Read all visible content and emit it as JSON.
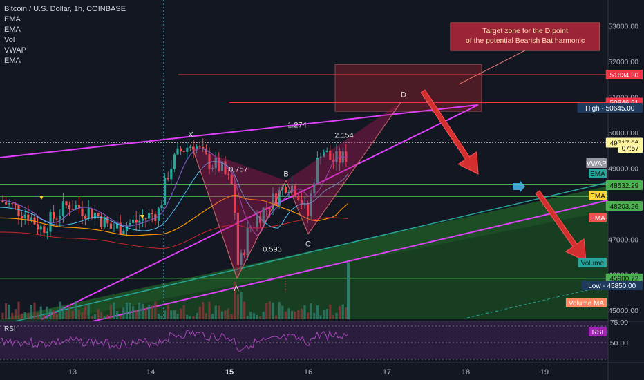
{
  "header": {
    "title": "Bitcoin / U.S. Dollar, 1h, COINBASE",
    "indicators": [
      "EMA",
      "EMA",
      "Vol",
      "VWAP",
      "EMA"
    ]
  },
  "annotation": {
    "line1": "Target zone for the D point",
    "line2": "of the potential Bearish Bat harmonic"
  },
  "pattern": {
    "points": [
      "X",
      "A",
      "B",
      "C",
      "D"
    ],
    "ratios": [
      "0.757",
      "0.593",
      "1.274",
      "2.154"
    ]
  },
  "price_tags": [
    {
      "label": "",
      "value": "51634.30",
      "color": "#f23645"
    },
    {
      "label": "",
      "value": "50846.91",
      "color": "#f23645"
    },
    {
      "label": "High",
      "value": "50645.00",
      "color": "#1e3a5f"
    },
    {
      "label": "",
      "value": "49717.96",
      "color": "#fff59d"
    },
    {
      "label": "",
      "value": "07:57",
      "color": "#fff59d"
    },
    {
      "label": "VWAP",
      "value": "",
      "color": "#9598a1"
    },
    {
      "label": "EMA",
      "value": "",
      "color": "#26a69a"
    },
    {
      "label": "",
      "value": "48532.29",
      "color": "#4caf50"
    },
    {
      "label": "EMA",
      "value": "",
      "color": "#fdd835"
    },
    {
      "label": "",
      "value": "48203.26",
      "color": "#4caf50"
    },
    {
      "label": "EMA",
      "value": "",
      "color": "#ef5350"
    },
    {
      "label": "Volume",
      "value": "",
      "color": "#26a69a"
    },
    {
      "label": "",
      "value": "45900.72",
      "color": "#4caf50"
    },
    {
      "label": "Low",
      "value": "45850.00",
      "color": "#1e3a5f"
    },
    {
      "label": "Volume MA",
      "value": "",
      "color": "#ff8a65"
    },
    {
      "label": "RSI",
      "value": "",
      "color": "#9c27b0"
    }
  ],
  "rsi": {
    "label": "RSI"
  },
  "chart_data": {
    "type": "line",
    "x_ticks": [
      "13",
      "14",
      "15",
      "16",
      "17",
      "18",
      "19"
    ],
    "y_ticks": [
      "53000.00",
      "52000.00",
      "51000.00",
      "50000.00",
      "49000.00",
      "48000.00",
      "47000.00",
      "46000.00",
      "45000.00"
    ],
    "rsi_ticks": [
      "75.00",
      "50.00"
    ],
    "ylim": [
      44750,
      53500
    ],
    "harmonic_points": {
      "X": 49600,
      "A": 45900,
      "B": 48650,
      "C": 47150,
      "D": 50850
    },
    "horizontal_levels": [
      51634.3,
      50846.91,
      48532.29,
      48203.26,
      45900.72
    ],
    "target_zone": [
      50600,
      51920
    ],
    "grid": false,
    "legend": "top-left"
  },
  "colors": {
    "bg": "#131722",
    "up": "#26a69a",
    "down": "#ef5350",
    "magenta": "#e040fb",
    "green_line": "#4caf50",
    "red_line": "#f23645"
  }
}
